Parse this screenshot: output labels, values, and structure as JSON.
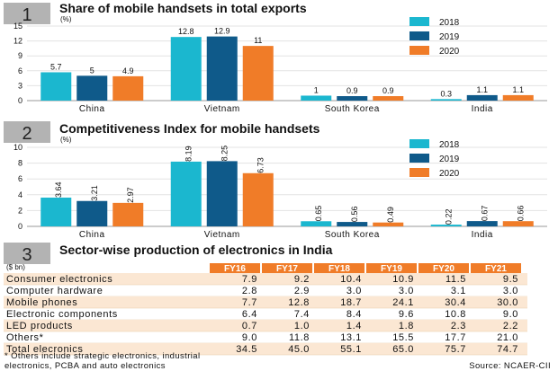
{
  "colors": {
    "series": [
      "#1bb7cf",
      "#0f5a8a",
      "#f07c28"
    ],
    "badge_bg": "#b3b3b3",
    "table_header": "#f07c28",
    "row_alt": "#fbe7d3",
    "total_row": "#fbe7d3",
    "gridline": "#e3e3e3"
  },
  "chart_data": [
    {
      "type": "bar",
      "number": "1",
      "title": "Share of mobile handsets in total exports",
      "unit": "(%)",
      "categories": [
        "China",
        "Vietnam",
        "South Korea",
        "India"
      ],
      "series": [
        {
          "name": "2018",
          "values": [
            5.7,
            12.8,
            1,
            0.3
          ]
        },
        {
          "name": "2019",
          "values": [
            5,
            12.9,
            0.9,
            1.1
          ]
        },
        {
          "name": "2020",
          "values": [
            4.9,
            11,
            0.9,
            1.1
          ]
        }
      ],
      "labels": [
        [
          "5.7",
          "12.8",
          "1",
          "0.3"
        ],
        [
          "5",
          "12.9",
          "0.9",
          "1.1"
        ],
        [
          "4.9",
          "11",
          "0.9",
          "1.1"
        ]
      ],
      "ylim": [
        0,
        15
      ],
      "yticks": [
        "0",
        "3",
        "6",
        "9",
        "12",
        "15"
      ],
      "ytick_values": [
        0,
        3,
        6,
        9,
        12,
        15
      ],
      "legend_position": "top-right",
      "label_rotation": 0
    },
    {
      "type": "bar",
      "number": "2",
      "title": "Competitiveness Index for mobile handsets",
      "unit": "(%)",
      "categories": [
        "China",
        "Vietnam",
        "South Korea",
        "India"
      ],
      "series": [
        {
          "name": "2018",
          "values": [
            3.64,
            8.19,
            0.65,
            0.22
          ]
        },
        {
          "name": "2019",
          "values": [
            3.21,
            8.25,
            0.56,
            0.67
          ]
        },
        {
          "name": "2020",
          "values": [
            2.97,
            6.73,
            0.49,
            0.66
          ]
        }
      ],
      "labels": [
        [
          "3.64",
          "8.19",
          "0.65",
          "0.22"
        ],
        [
          "3.21",
          "8.25",
          "0.56",
          "0.67"
        ],
        [
          "2.97",
          "6.73",
          "0.49",
          "0.66"
        ]
      ],
      "ylim": [
        0,
        10
      ],
      "yticks": [
        "0",
        "2",
        "4",
        "6",
        "8",
        "10"
      ],
      "ytick_values": [
        0,
        2,
        4,
        6,
        8,
        10
      ],
      "legend_position": "top-right",
      "label_rotation": -90
    },
    {
      "type": "table",
      "number": "3",
      "title": "Sector-wise production of electronics in India",
      "unit": "($ bn)",
      "columns": [
        "FY16",
        "FY17",
        "FY18",
        "FY19",
        "FY20",
        "FY21"
      ],
      "rows": [
        {
          "label": "Consumer electronics",
          "values": [
            "7.9",
            "9.2",
            "10.4",
            "10.9",
            "11.5",
            "9.5"
          ]
        },
        {
          "label": "Computer hardware",
          "values": [
            "2.8",
            "2.9",
            "3.0",
            "3.0",
            "3.1",
            "3.0"
          ]
        },
        {
          "label": "Mobile phones",
          "values": [
            "7.7",
            "12.8",
            "18.7",
            "24.1",
            "30.4",
            "30.0"
          ]
        },
        {
          "label": "Electronic components",
          "values": [
            "6.4",
            "7.4",
            "8.4",
            "9.6",
            "10.8",
            "9.0"
          ]
        },
        {
          "label": "LED products",
          "values": [
            "0.7",
            "1.0",
            "1.4",
            "1.8",
            "2.3",
            "2.2"
          ]
        },
        {
          "label": "Others*",
          "values": [
            "9.0",
            "11.8",
            "13.1",
            "15.5",
            "17.7",
            "21.0"
          ]
        },
        {
          "label": "Total elecronics",
          "values": [
            "34.5",
            "45.0",
            "55.1",
            "65.0",
            "75.7",
            "74.7"
          ]
        }
      ]
    }
  ],
  "footnote": {
    "line1": "* Others include strategic electronics, industrial",
    "line2": "electronics, PCBA and auto electronics",
    "source": "Source: NCAER-CII"
  }
}
